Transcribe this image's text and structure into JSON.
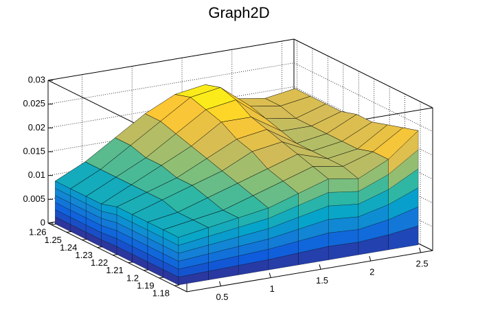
{
  "chart_data": {
    "type": "surface",
    "title": "Graph2D",
    "x": [
      0.2,
      0.5,
      0.8,
      1.1,
      1.4,
      1.7,
      2.0,
      2.3,
      2.6
    ],
    "y": [
      1.18,
      1.19,
      1.2,
      1.21,
      1.22,
      1.23,
      1.24,
      1.25,
      1.26
    ],
    "z": [
      [
        0.01,
        0.011,
        0.012,
        0.013,
        0.015,
        0.017,
        0.016,
        0.019,
        0.024
      ],
      [
        0.01,
        0.011,
        0.012,
        0.014,
        0.016,
        0.018,
        0.017,
        0.019,
        0.023
      ],
      [
        0.01,
        0.011,
        0.013,
        0.015,
        0.017,
        0.019,
        0.017,
        0.018,
        0.022
      ],
      [
        0.01,
        0.012,
        0.014,
        0.016,
        0.019,
        0.02,
        0.017,
        0.018,
        0.021
      ],
      [
        0.01,
        0.012,
        0.014,
        0.017,
        0.02,
        0.021,
        0.017,
        0.018,
        0.021
      ],
      [
        0.009,
        0.012,
        0.015,
        0.018,
        0.022,
        0.022,
        0.018,
        0.018,
        0.02
      ],
      [
        0.009,
        0.012,
        0.015,
        0.019,
        0.023,
        0.024,
        0.019,
        0.018,
        0.02
      ],
      [
        0.009,
        0.012,
        0.016,
        0.02,
        0.024,
        0.025,
        0.02,
        0.019,
        0.02
      ],
      [
        0.009,
        0.012,
        0.016,
        0.02,
        0.023,
        0.024,
        0.02,
        0.019,
        0.02
      ]
    ],
    "xlim": [
      0.16,
      2.62
    ],
    "ylim": [
      1.172,
      1.262
    ],
    "zlim": [
      0,
      0.03
    ],
    "xticks": [
      0.5,
      1,
      1.5,
      2,
      2.5
    ],
    "yticks": [
      1.18,
      1.19,
      1.2,
      1.21,
      1.22,
      1.23,
      1.24,
      1.25,
      1.26
    ],
    "zticks": [
      0,
      0.005,
      0.01,
      0.015,
      0.02,
      0.025,
      0.03
    ],
    "grid": true,
    "palette": [
      "#352a87",
      "#0f5cdd",
      "#1481d6",
      "#06a4ca",
      "#2eb7a4",
      "#87bf77",
      "#d1bb59",
      "#fec832",
      "#f9fb0e"
    ]
  }
}
